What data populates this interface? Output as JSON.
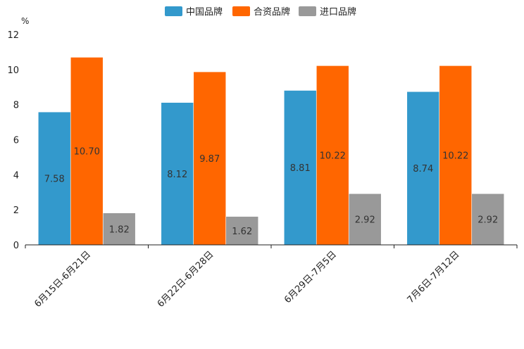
{
  "chart_data": {
    "type": "bar",
    "title": "",
    "xlabel": "",
    "ylabel": "",
    "unit_label": "%",
    "ylim": [
      0,
      12
    ],
    "yticks": [
      0,
      2,
      4,
      6,
      8,
      10,
      12
    ],
    "categories": [
      "6月15日-6月21日",
      "6月22日-6月28日",
      "6月29日-7月5日",
      "7月6日-7月12日"
    ],
    "series": [
      {
        "name": "中国品牌",
        "color": "#3399cc",
        "values": [
          7.58,
          8.12,
          8.81,
          8.74
        ],
        "labels": [
          "7.58",
          "8.12",
          "8.81",
          "8.74"
        ]
      },
      {
        "name": "合资品牌",
        "color": "#ff6600",
        "values": [
          10.7,
          9.87,
          10.22,
          10.22
        ],
        "labels": [
          "10.70",
          "9.87",
          "10.22",
          "10.22"
        ]
      },
      {
        "name": "进口品牌",
        "color": "#999999",
        "values": [
          1.82,
          1.62,
          2.92,
          2.92
        ],
        "labels": [
          "1.82",
          "1.62",
          "2.92",
          "2.92"
        ]
      }
    ],
    "legend_position": "top-center",
    "grid": false
  }
}
